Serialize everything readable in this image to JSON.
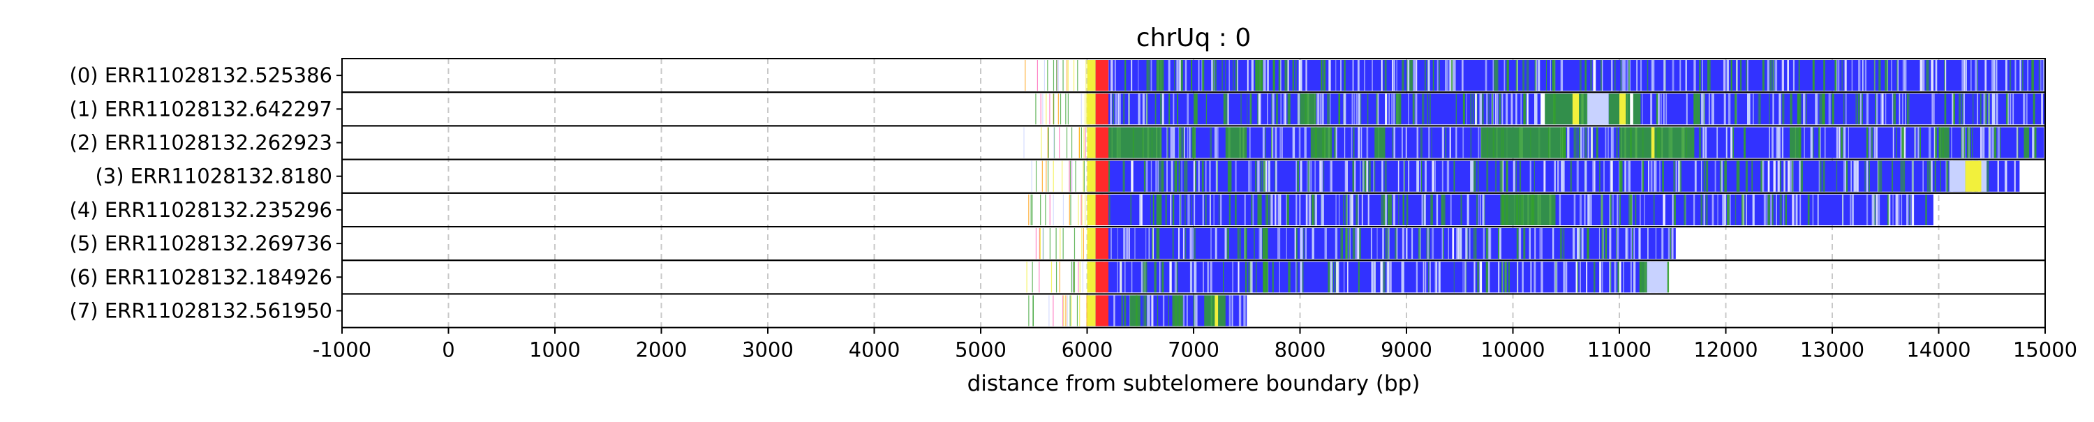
{
  "chart_data": {
    "type": "heatmap",
    "title": "chrUq : 0",
    "xlabel": "distance from subtelomere boundary (bp)",
    "ylabel": "",
    "xlim": [
      -1000,
      15000
    ],
    "x_ticks": [
      "-1000",
      "0",
      "1000",
      "2000",
      "3000",
      "4000",
      "5000",
      "6000",
      "7000",
      "8000",
      "9000",
      "10000",
      "11000",
      "12000",
      "13000",
      "14000",
      "15000"
    ],
    "grid": "vertical dashed",
    "legend": "none",
    "boundary_x": 6000,
    "colors": {
      "main": "#3232ff",
      "green": "#33a02c",
      "yellow": "#f2f03c",
      "light": "#c8d2ff",
      "white": "#ffffff",
      "red": "#ff2a2a",
      "orange": "#ff9900",
      "pink": "#ff5ab4",
      "grid": "#c8c8c8"
    },
    "reads": [
      {
        "label": "(0) ERR11028132.525386",
        "start": 6000,
        "end": 15000,
        "prefix_start": 5400,
        "segments": [
          {
            "from": 6000,
            "to": 6080,
            "color": "yellow"
          },
          {
            "from": 6080,
            "to": 6200,
            "color": "red"
          },
          {
            "from": 6650,
            "to": 6720,
            "color": "green"
          },
          {
            "from": 6880,
            "to": 6900,
            "color": "green"
          },
          {
            "from": 7080,
            "to": 7100,
            "color": "green"
          },
          {
            "from": 7580,
            "to": 7650,
            "color": "green"
          },
          {
            "from": 8000,
            "to": 8020,
            "color": "light"
          },
          {
            "from": 9200,
            "to": 9220,
            "color": "light"
          },
          {
            "from": 11620,
            "to": 11635,
            "color": "light"
          },
          {
            "from": 14760,
            "to": 14775,
            "color": "light"
          }
        ]
      },
      {
        "label": "(1) ERR11028132.642297",
        "start": 6000,
        "end": 15000,
        "prefix_start": 5420,
        "segments": [
          {
            "from": 6000,
            "to": 6080,
            "color": "yellow"
          },
          {
            "from": 6080,
            "to": 6200,
            "color": "red"
          },
          {
            "from": 7000,
            "to": 7030,
            "color": "green"
          },
          {
            "from": 8000,
            "to": 8150,
            "color": "green"
          },
          {
            "from": 8900,
            "to": 8950,
            "color": "green"
          },
          {
            "from": 10200,
            "to": 10230,
            "color": "light"
          },
          {
            "from": 10260,
            "to": 10300,
            "color": "white"
          },
          {
            "from": 10300,
            "to": 10700,
            "color": "green"
          },
          {
            "from": 10560,
            "to": 10620,
            "color": "yellow"
          },
          {
            "from": 10700,
            "to": 10900,
            "color": "light"
          },
          {
            "from": 10900,
            "to": 11200,
            "color": "green"
          },
          {
            "from": 11000,
            "to": 11060,
            "color": "yellow"
          },
          {
            "from": 11100,
            "to": 11130,
            "color": "white"
          },
          {
            "from": 11700,
            "to": 11760,
            "color": "green"
          },
          {
            "from": 12200,
            "to": 12230,
            "color": "light"
          },
          {
            "from": 12900,
            "to": 12930,
            "color": "green"
          },
          {
            "from": 14500,
            "to": 14530,
            "color": "light"
          }
        ]
      },
      {
        "label": "(2) ERR11028132.262923",
        "start": 6000,
        "end": 15000,
        "prefix_start": 5400,
        "segments": [
          {
            "from": 6000,
            "to": 6080,
            "color": "yellow"
          },
          {
            "from": 6080,
            "to": 6200,
            "color": "red"
          },
          {
            "from": 6200,
            "to": 6700,
            "color": "green"
          },
          {
            "from": 7300,
            "to": 7500,
            "color": "green"
          },
          {
            "from": 8100,
            "to": 8300,
            "color": "green"
          },
          {
            "from": 8700,
            "to": 8800,
            "color": "green"
          },
          {
            "from": 9700,
            "to": 10500,
            "color": "green"
          },
          {
            "from": 11000,
            "to": 11700,
            "color": "green"
          },
          {
            "from": 11300,
            "to": 11330,
            "color": "yellow"
          },
          {
            "from": 12600,
            "to": 12700,
            "color": "green"
          },
          {
            "from": 14000,
            "to": 14100,
            "color": "green"
          },
          {
            "from": 14800,
            "to": 14850,
            "color": "green"
          }
        ]
      },
      {
        "label": "(3) ERR11028132.8180",
        "start": 6000,
        "end": 14760,
        "prefix_start": 5450,
        "segments": [
          {
            "from": 6000,
            "to": 6080,
            "color": "yellow"
          },
          {
            "from": 6080,
            "to": 6200,
            "color": "red"
          },
          {
            "from": 6700,
            "to": 6720,
            "color": "green"
          },
          {
            "from": 7700,
            "to": 7720,
            "color": "light"
          },
          {
            "from": 8000,
            "to": 8020,
            "color": "light"
          },
          {
            "from": 9600,
            "to": 9630,
            "color": "light"
          },
          {
            "from": 10450,
            "to": 10480,
            "color": "light"
          },
          {
            "from": 11000,
            "to": 11030,
            "color": "green"
          },
          {
            "from": 12100,
            "to": 12130,
            "color": "green"
          },
          {
            "from": 13200,
            "to": 13230,
            "color": "light"
          },
          {
            "from": 14100,
            "to": 14250,
            "color": "light"
          },
          {
            "from": 14250,
            "to": 14400,
            "color": "yellow"
          },
          {
            "from": 14400,
            "to": 14450,
            "color": "light"
          }
        ]
      },
      {
        "label": "(4) ERR11028132.235296",
        "start": 6000,
        "end": 13950,
        "prefix_start": 5400,
        "segments": [
          {
            "from": 6000,
            "to": 6080,
            "color": "yellow"
          },
          {
            "from": 6080,
            "to": 6200,
            "color": "red"
          },
          {
            "from": 6650,
            "to": 6700,
            "color": "green"
          },
          {
            "from": 7600,
            "to": 7640,
            "color": "green"
          },
          {
            "from": 9900,
            "to": 10400,
            "color": "green"
          },
          {
            "from": 10700,
            "to": 10720,
            "color": "light"
          },
          {
            "from": 11100,
            "to": 11120,
            "color": "green"
          },
          {
            "from": 12250,
            "to": 12270,
            "color": "light"
          }
        ]
      },
      {
        "label": "(5) ERR11028132.269736",
        "start": 6000,
        "end": 11530,
        "prefix_start": 5480,
        "segments": [
          {
            "from": 6000,
            "to": 6080,
            "color": "yellow"
          },
          {
            "from": 6080,
            "to": 6200,
            "color": "red"
          },
          {
            "from": 6650,
            "to": 6680,
            "color": "green"
          },
          {
            "from": 7650,
            "to": 7700,
            "color": "green"
          },
          {
            "from": 8000,
            "to": 8020,
            "color": "light"
          },
          {
            "from": 9500,
            "to": 9520,
            "color": "light"
          },
          {
            "from": 10600,
            "to": 10620,
            "color": "light"
          }
        ]
      },
      {
        "label": "(6) ERR11028132.184926",
        "start": 6000,
        "end": 11450,
        "prefix_start": 5400,
        "segments": [
          {
            "from": 6000,
            "to": 6080,
            "color": "yellow"
          },
          {
            "from": 6080,
            "to": 6200,
            "color": "red"
          },
          {
            "from": 6700,
            "to": 6720,
            "color": "green"
          },
          {
            "from": 7650,
            "to": 7700,
            "color": "green"
          },
          {
            "from": 8000,
            "to": 8020,
            "color": "light"
          },
          {
            "from": 9300,
            "to": 9320,
            "color": "light"
          },
          {
            "from": 11200,
            "to": 11260,
            "color": "green"
          },
          {
            "from": 11260,
            "to": 11450,
            "color": "light"
          }
        ]
      },
      {
        "label": "(7) ERR11028132.561950",
        "start": 6000,
        "end": 7500,
        "prefix_start": 5450,
        "segments": [
          {
            "from": 6000,
            "to": 6080,
            "color": "yellow"
          },
          {
            "from": 6080,
            "to": 6200,
            "color": "red"
          },
          {
            "from": 6400,
            "to": 6500,
            "color": "green"
          },
          {
            "from": 6800,
            "to": 6900,
            "color": "green"
          },
          {
            "from": 7100,
            "to": 7300,
            "color": "green"
          },
          {
            "from": 7200,
            "to": 7230,
            "color": "yellow"
          }
        ]
      }
    ]
  }
}
